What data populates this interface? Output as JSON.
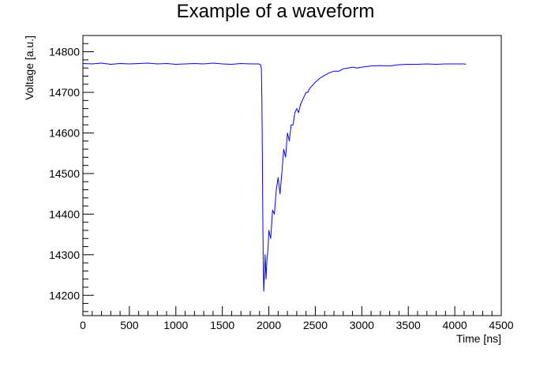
{
  "chart_data": {
    "type": "line",
    "title": "Example of a waveform",
    "xlabel": "Time [ns]",
    "ylabel": "Voltage [a.u.]",
    "xlim": [
      0,
      4500
    ],
    "ylim": [
      14150,
      14840
    ],
    "x_ticks": [
      0,
      500,
      1000,
      1500,
      2000,
      2500,
      3000,
      3500,
      4000,
      4500
    ],
    "y_ticks": [
      14200,
      14300,
      14400,
      14500,
      14600,
      14700,
      14800
    ],
    "grid": false,
    "legend": "none",
    "line_color": "#0000ff",
    "series": [
      {
        "x": [
          0,
          100,
          200,
          300,
          400,
          500,
          600,
          700,
          800,
          900,
          1000,
          1100,
          1200,
          1300,
          1400,
          1500,
          1600,
          1700,
          1800,
          1890,
          1910,
          1920,
          1925,
          1930,
          1935,
          1940,
          1945,
          1950,
          1960,
          1970,
          1980,
          1990,
          2000,
          2020,
          2040,
          2060,
          2080,
          2100,
          2120,
          2140,
          2160,
          2180,
          2200,
          2220,
          2240,
          2260,
          2280,
          2300,
          2320,
          2340,
          2360,
          2380,
          2400,
          2420,
          2440,
          2460,
          2480,
          2500,
          2550,
          2600,
          2650,
          2700,
          2750,
          2800,
          2850,
          2900,
          2950,
          3000,
          3100,
          3200,
          3300,
          3400,
          3500,
          3600,
          3700,
          3800,
          3900,
          4000,
          4100,
          4120
        ],
        "y": [
          14771,
          14770,
          14772,
          14769,
          14771,
          14770,
          14771,
          14772,
          14770,
          14771,
          14769,
          14770,
          14771,
          14770,
          14772,
          14770,
          14769,
          14771,
          14770,
          14770,
          14768,
          14760,
          14690,
          14560,
          14400,
          14270,
          14210,
          14240,
          14300,
          14240,
          14290,
          14310,
          14360,
          14340,
          14410,
          14400,
          14460,
          14490,
          14450,
          14500,
          14560,
          14540,
          14600,
          14580,
          14620,
          14620,
          14650,
          14660,
          14650,
          14670,
          14680,
          14690,
          14700,
          14700,
          14710,
          14715,
          14720,
          14725,
          14735,
          14742,
          14748,
          14752,
          14752,
          14758,
          14760,
          14762,
          14760,
          14762,
          14765,
          14766,
          14765,
          14768,
          14769,
          14769,
          14770,
          14769,
          14770,
          14770,
          14770,
          14769
        ]
      }
    ]
  }
}
